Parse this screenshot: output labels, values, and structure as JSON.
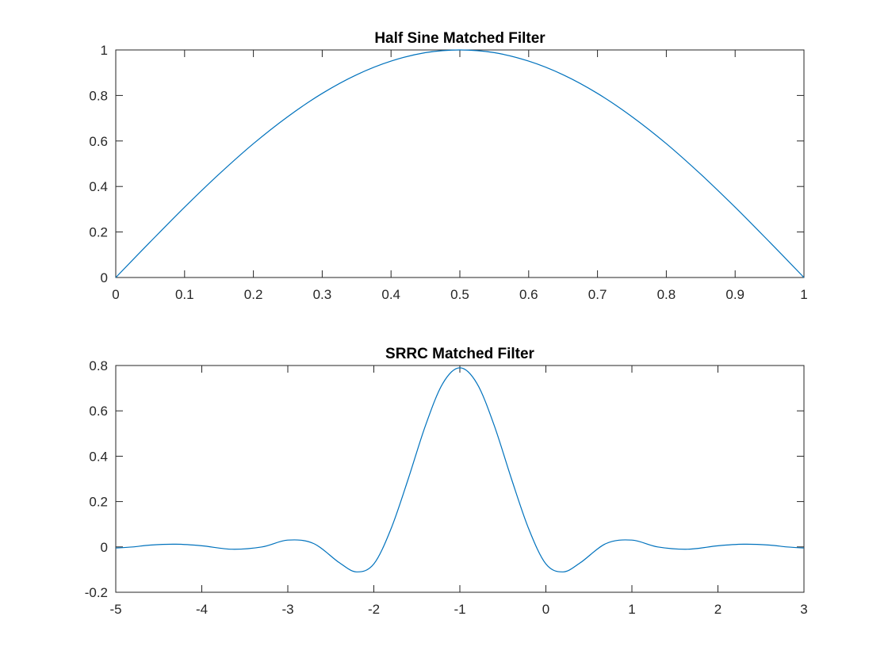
{
  "chart_data": [
    {
      "type": "line",
      "title": "Half Sine Matched Filter",
      "xlabel": "",
      "ylabel": "",
      "xlim": [
        0,
        1
      ],
      "ylim": [
        0,
        1
      ],
      "xticks": [
        0,
        0.1,
        0.2,
        0.3,
        0.4,
        0.5,
        0.6,
        0.7,
        0.8,
        0.9,
        1
      ],
      "xtick_labels": [
        "0",
        "0.1",
        "0.2",
        "0.3",
        "0.4",
        "0.5",
        "0.6",
        "0.7",
        "0.8",
        "0.9",
        "1"
      ],
      "yticks": [
        0,
        0.2,
        0.4,
        0.6,
        0.8,
        1
      ],
      "ytick_labels": [
        "0",
        "0.2",
        "0.4",
        "0.6",
        "0.8",
        "1"
      ],
      "grid": false,
      "series": [
        {
          "color": "#0072bd",
          "x": [
            0,
            0.05,
            0.1,
            0.15,
            0.2,
            0.25,
            0.3,
            0.35,
            0.4,
            0.45,
            0.5,
            0.55,
            0.6,
            0.65,
            0.7,
            0.75,
            0.8,
            0.85,
            0.9,
            0.95,
            1
          ],
          "y": [
            0,
            0.156,
            0.309,
            0.454,
            0.588,
            0.707,
            0.809,
            0.891,
            0.951,
            0.988,
            1,
            0.988,
            0.951,
            0.891,
            0.809,
            0.707,
            0.588,
            0.454,
            0.309,
            0.156,
            0
          ]
        }
      ]
    },
    {
      "type": "line",
      "title": "SRRC Matched Filter",
      "xlabel": "",
      "ylabel": "",
      "xlim": [
        -5,
        3
      ],
      "ylim": [
        -0.2,
        0.8
      ],
      "xticks": [
        -5,
        -4,
        -3,
        -2,
        -1,
        0,
        1,
        2,
        3
      ],
      "xtick_labels": [
        "-5",
        "-4",
        "-3",
        "-2",
        "-1",
        "0",
        "1",
        "2",
        "3"
      ],
      "yticks": [
        -0.2,
        0,
        0.2,
        0.4,
        0.6,
        0.8
      ],
      "ytick_labels": [
        "-0.2",
        "0",
        "0.2",
        "0.4",
        "0.6",
        "0.8"
      ],
      "grid": false,
      "series": [
        {
          "color": "#0072bd",
          "x": [
            -5,
            -4.8,
            -4.6,
            -4.3,
            -4.0,
            -3.65,
            -3.3,
            -3.0,
            -2.7,
            -2.4,
            -2.2,
            -2.0,
            -1.8,
            -1.6,
            -1.4,
            -1.2,
            -1.0,
            -0.8,
            -0.6,
            -0.4,
            -0.2,
            0,
            0.2,
            0.4,
            0.7,
            1.0,
            1.3,
            1.65,
            2.0,
            2.3,
            2.6,
            2.8,
            3.0
          ],
          "y": [
            -0.005,
            0.0,
            0.008,
            0.012,
            0.005,
            -0.01,
            0.0,
            0.03,
            0.015,
            -0.07,
            -0.11,
            -0.075,
            0.08,
            0.3,
            0.535,
            0.72,
            0.79,
            0.72,
            0.535,
            0.3,
            0.08,
            -0.075,
            -0.11,
            -0.07,
            0.015,
            0.03,
            0.0,
            -0.01,
            0.005,
            0.012,
            0.008,
            0.0,
            -0.005
          ]
        }
      ]
    }
  ]
}
